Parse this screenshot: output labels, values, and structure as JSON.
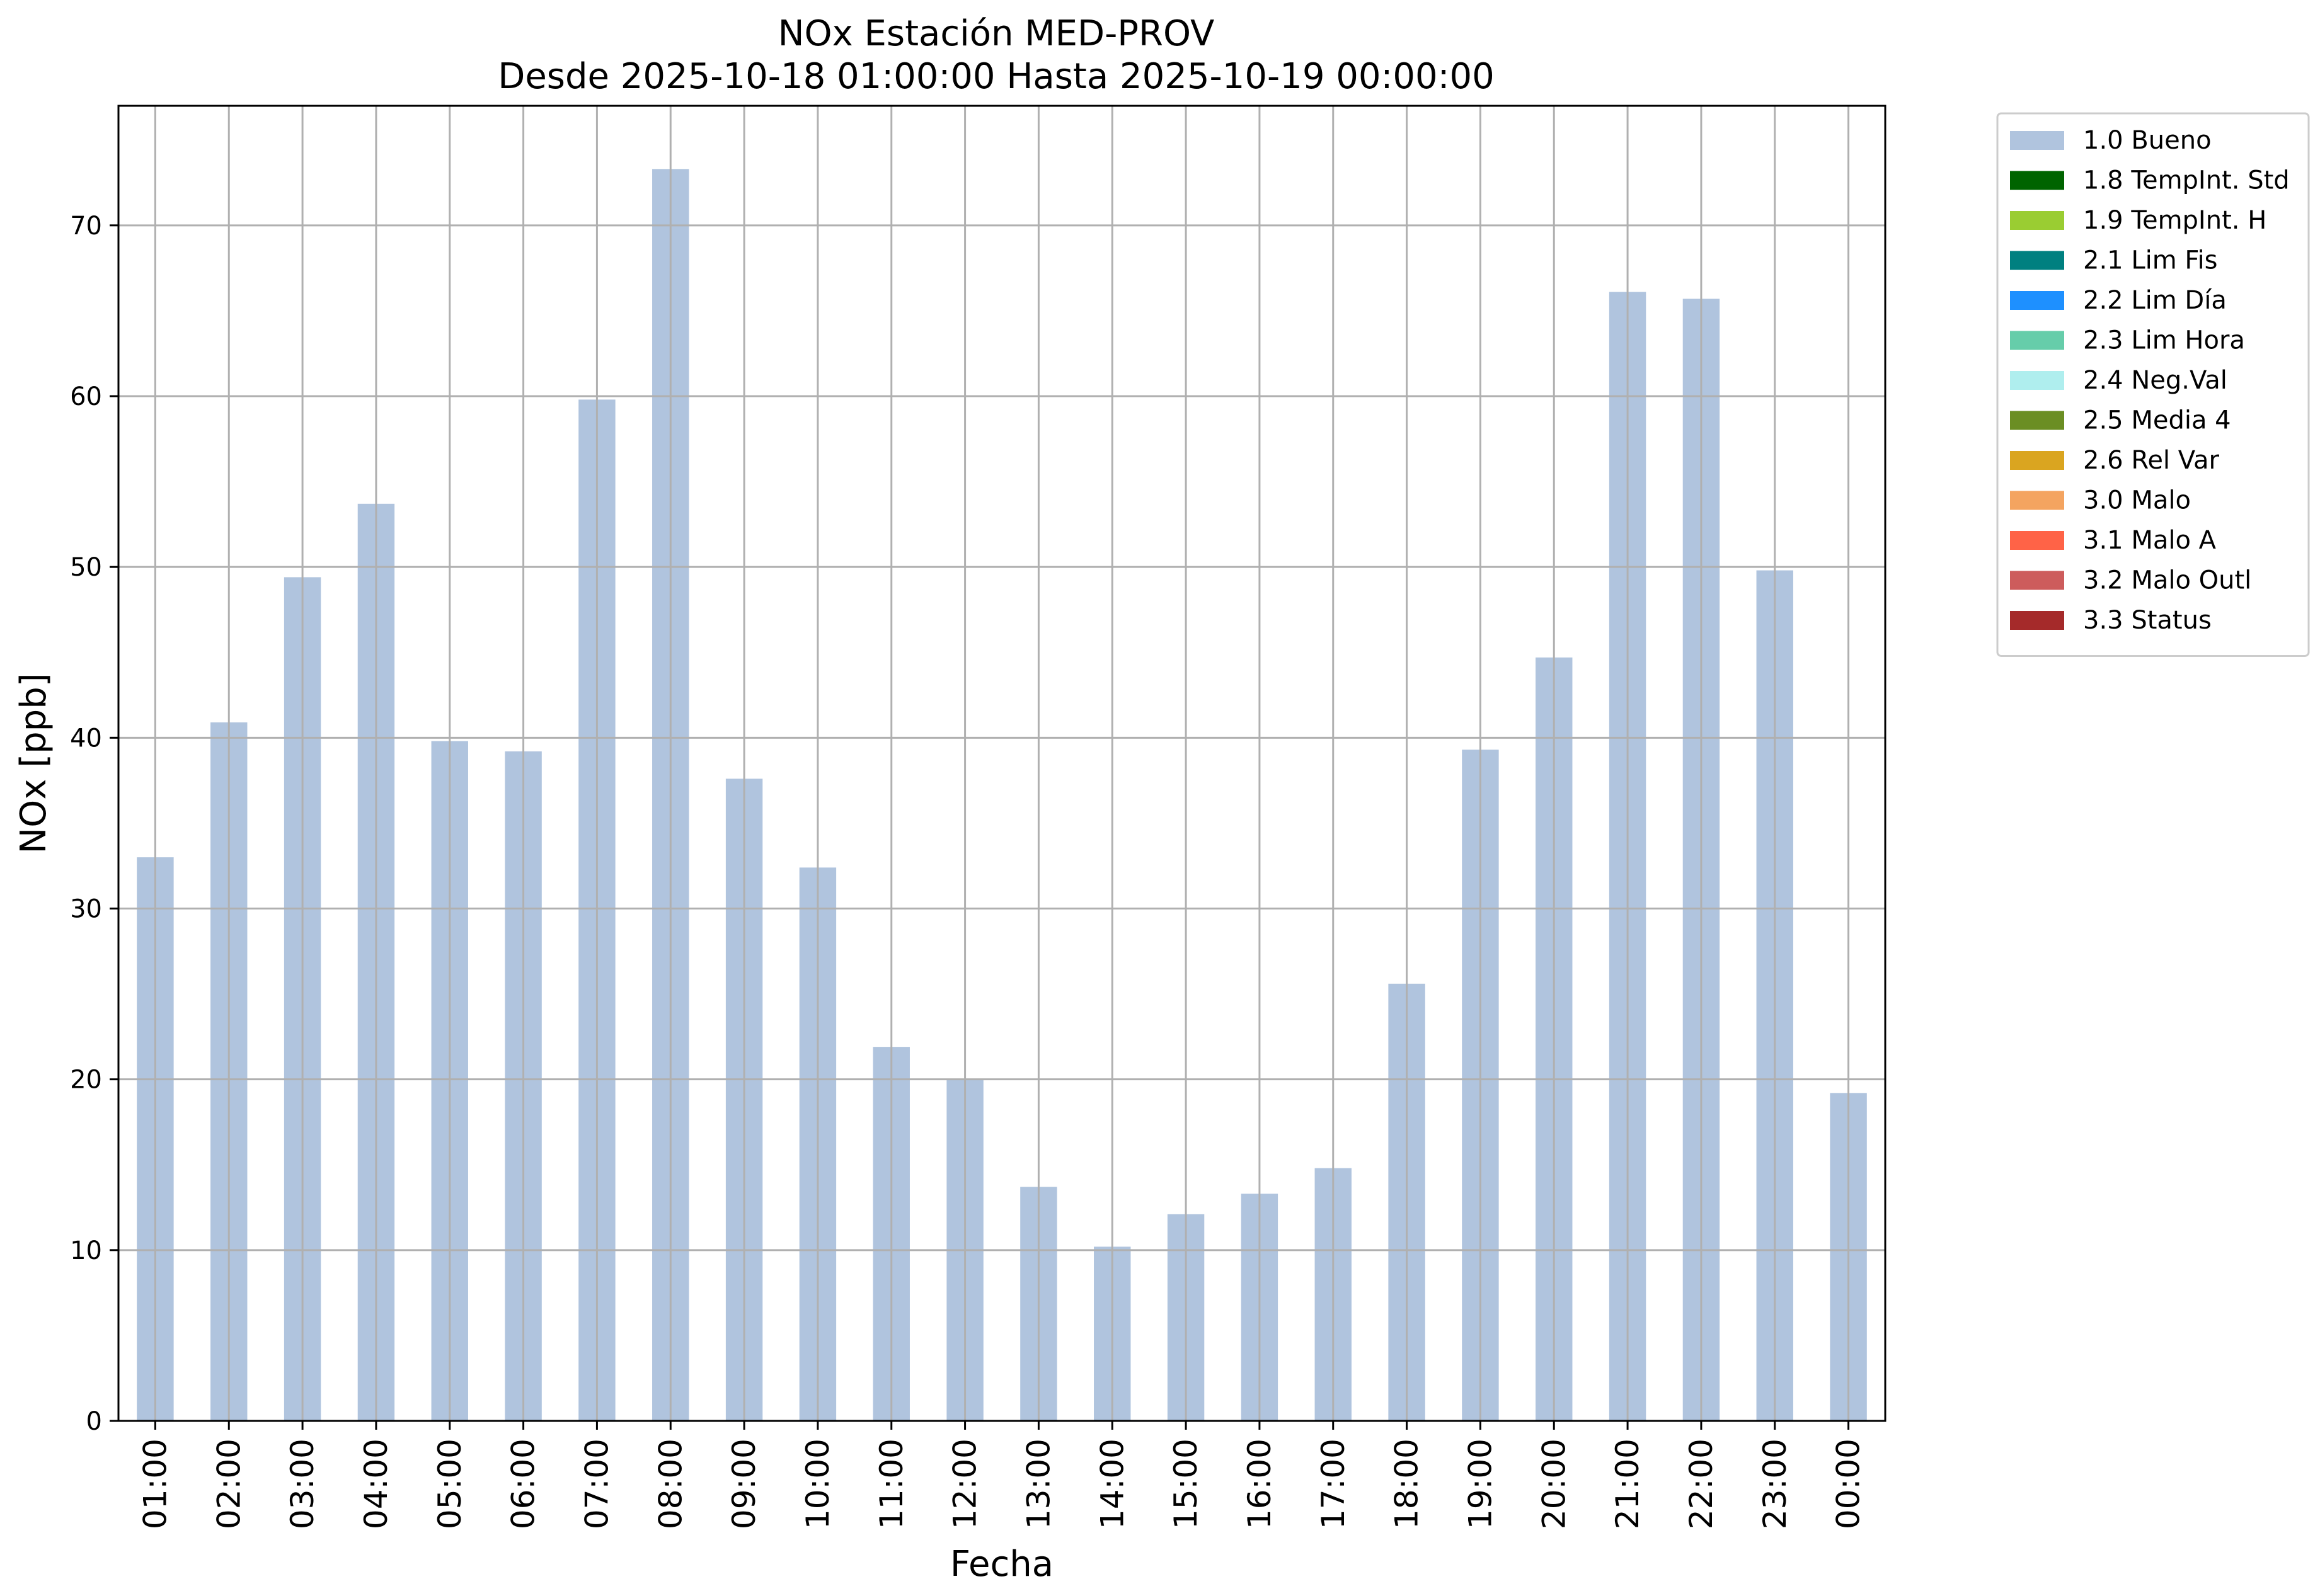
{
  "chart_data": {
    "type": "bar",
    "title": "NOx Estación MED-PROV",
    "subtitle": "Desde 2025-10-18 01:00:00 Hasta 2025-10-19 00:00:00",
    "xlabel": "Fecha",
    "ylabel": "NOx [ppb]",
    "ylim": [
      0,
      77
    ],
    "yticks": [
      0,
      10,
      20,
      30,
      40,
      50,
      60,
      70
    ],
    "grid": true,
    "legend_position": "outside top-right",
    "categories": [
      "01:00",
      "02:00",
      "03:00",
      "04:00",
      "05:00",
      "06:00",
      "07:00",
      "08:00",
      "09:00",
      "10:00",
      "11:00",
      "12:00",
      "13:00",
      "14:00",
      "15:00",
      "16:00",
      "17:00",
      "18:00",
      "19:00",
      "20:00",
      "21:00",
      "22:00",
      "23:00",
      "00:00"
    ],
    "series": [
      {
        "name": "1.0 Bueno",
        "color": "#b0c4de",
        "values": [
          33.0,
          40.9,
          49.4,
          53.7,
          39.8,
          39.2,
          59.8,
          73.3,
          37.6,
          32.4,
          21.9,
          20.0,
          13.7,
          10.2,
          12.1,
          13.3,
          14.8,
          25.6,
          39.3,
          44.7,
          66.1,
          65.7,
          49.8,
          19.2
        ]
      }
    ],
    "legend": [
      {
        "label": "1.0 Bueno",
        "color": "#b0c4de"
      },
      {
        "label": "1.8 TempInt. Std",
        "color": "#006400"
      },
      {
        "label": "1.9 TempInt. H",
        "color": "#9acd32"
      },
      {
        "label": "2.1 Lim Fis",
        "color": "#008080"
      },
      {
        "label": "2.2 Lim Día",
        "color": "#1e90ff"
      },
      {
        "label": "2.3 Lim Hora",
        "color": "#66cdaa"
      },
      {
        "label": "2.4 Neg.Val",
        "color": "#afeeee"
      },
      {
        "label": "2.5 Media 4",
        "color": "#6b8e23"
      },
      {
        "label": "2.6 Rel Var",
        "color": "#daa520"
      },
      {
        "label": "3.0 Malo",
        "color": "#f4a460"
      },
      {
        "label": "3.1 Malo A",
        "color": "#ff6347"
      },
      {
        "label": "3.2 Malo Outl",
        "color": "#cd5c5c"
      },
      {
        "label": "3.3 Status",
        "color": "#a52a2a"
      }
    ]
  }
}
